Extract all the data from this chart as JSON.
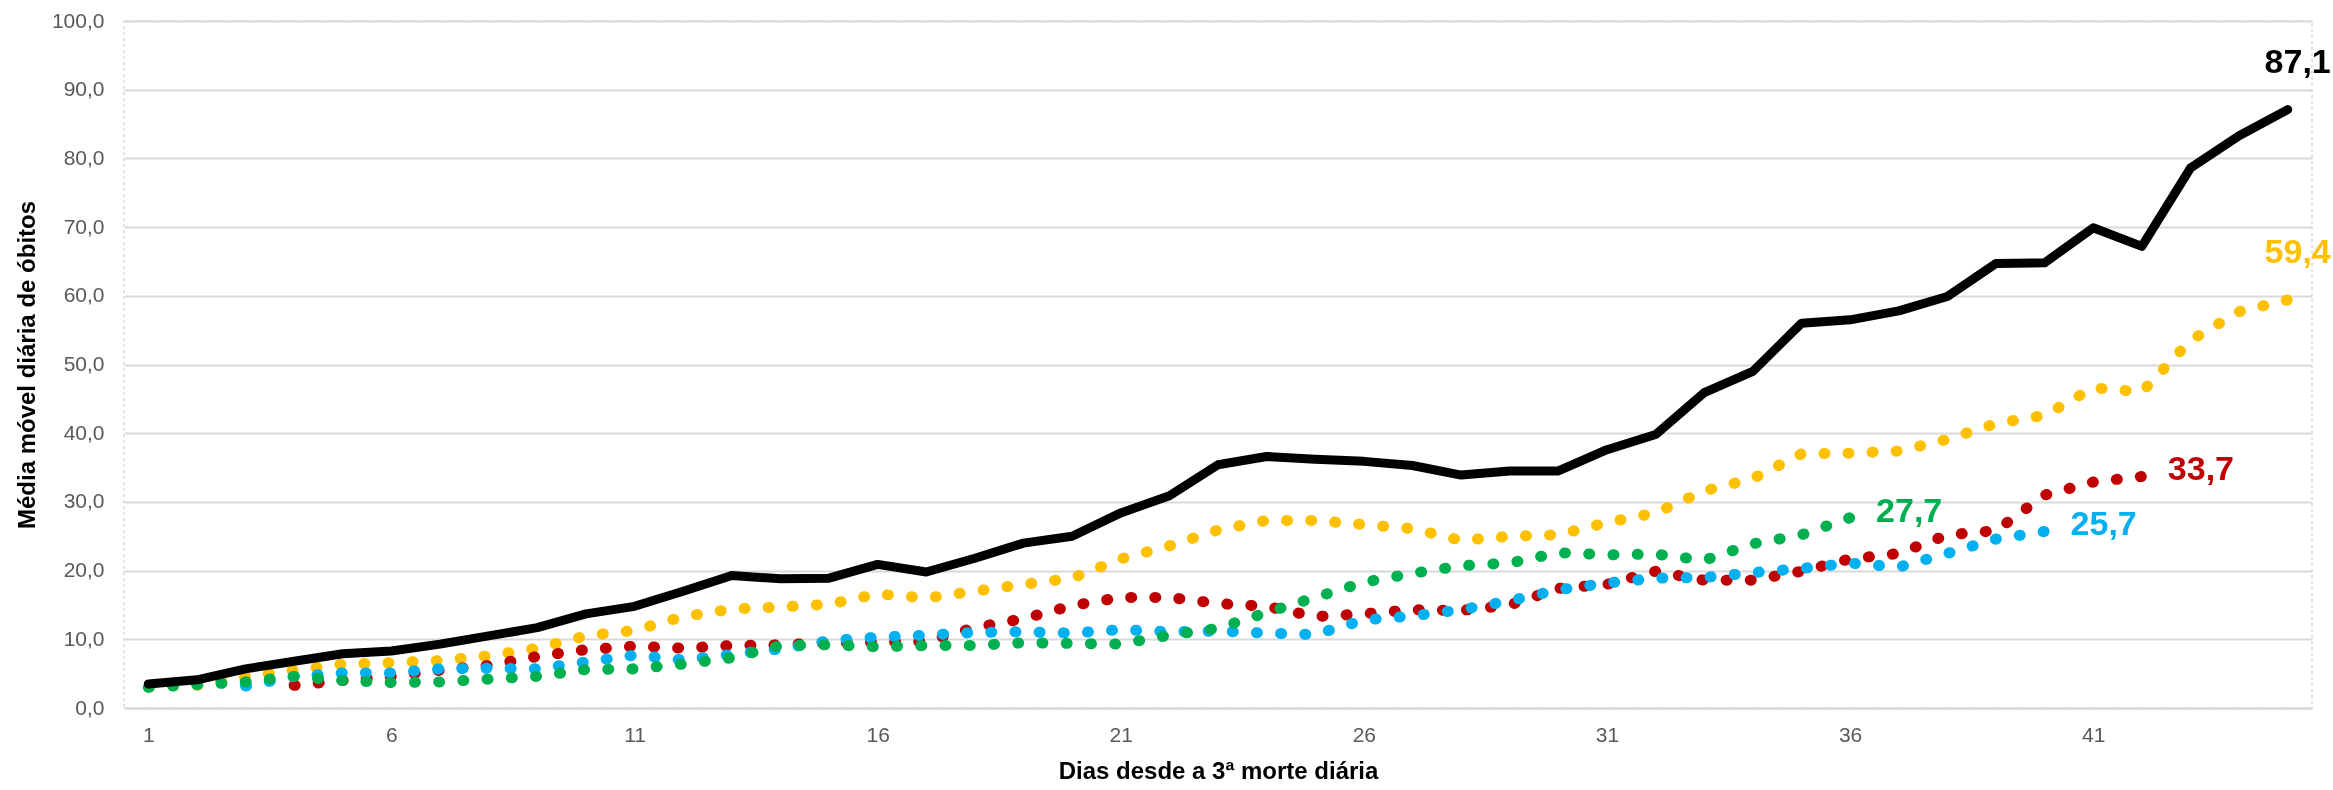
{
  "chart_data": {
    "type": "line",
    "xlabel": "Dias desde a 3ª morte diária",
    "ylabel": "Média móvel diária de óbitos",
    "x": [
      1,
      2,
      3,
      4,
      5,
      6,
      7,
      8,
      9,
      10,
      11,
      12,
      13,
      14,
      15,
      16,
      17,
      18,
      19,
      20,
      21,
      22,
      23,
      24,
      25,
      26,
      27,
      28,
      29,
      30,
      31,
      32,
      33,
      34,
      35,
      36,
      37,
      38,
      39,
      40,
      41,
      42,
      43,
      44,
      45
    ],
    "xlim": [
      0.5,
      45.5
    ],
    "xticks": [
      1,
      6,
      11,
      16,
      21,
      26,
      31,
      36,
      41
    ],
    "ylim": [
      0,
      100
    ],
    "yticks": [
      {
        "value": 0,
        "label": "0,0"
      },
      {
        "value": 10,
        "label": "10,0"
      },
      {
        "value": 20,
        "label": "20,0"
      },
      {
        "value": 30,
        "label": "30,0"
      },
      {
        "value": 40,
        "label": "40,0"
      },
      {
        "value": 50,
        "label": "50,0"
      },
      {
        "value": 60,
        "label": "60,0"
      },
      {
        "value": 70,
        "label": "70,0"
      },
      {
        "value": 80,
        "label": "80,0"
      },
      {
        "value": 90,
        "label": "90,0"
      },
      {
        "value": 100,
        "label": "100,0"
      }
    ],
    "grid": "y",
    "series": [
      {
        "color": "#ffc000",
        "line_style": "dotted",
        "values": [
          null,
          3.3,
          4.6,
          5.5,
          6.4,
          6.6,
          6.9,
          7.6,
          8.7,
          10.5,
          11.3,
          13.3,
          14.4,
          14.7,
          15.1,
          16.6,
          16.0,
          17.0,
          18.0,
          18.9,
          21.7,
          23.6,
          25.9,
          27.3,
          27.3,
          26.7,
          26.1,
          24.4,
          25.0,
          25.2,
          27.0,
          28.4,
          31.6,
          33.4,
          37.0,
          37.1,
          37.4,
          39.1,
          41.4,
          42.6,
          46.6,
          46.0,
          53.5,
          57.7,
          59.4
        ],
        "value_labels": [
          null,
          null,
          null,
          null,
          null,
          null,
          null,
          null,
          null,
          null,
          null,
          null,
          null,
          null,
          null,
          null,
          null,
          null,
          null,
          null,
          null,
          null,
          null,
          null,
          null,
          null,
          null,
          null,
          null,
          null,
          null,
          null,
          null,
          null,
          null,
          null,
          null,
          null,
          null,
          null,
          null,
          null,
          null,
          null,
          "59,4"
        ]
      },
      {
        "color": "#c00000",
        "line_style": "dotted",
        "values": [
          null,
          null,
          null,
          3.3,
          4.0,
          4.6,
          5.5,
          6.2,
          7.5,
          8.5,
          9.0,
          8.7,
          9.1,
          9.2,
          9.5,
          9.6,
          9.7,
          11.7,
          13.0,
          14.9,
          16.1,
          16.1,
          15.2,
          14.8,
          13.3,
          13.7,
          14.3,
          14.2,
          15.0,
          17.4,
          18.0,
          19.9,
          18.6,
          18.6,
          19.9,
          21.7,
          22.5,
          25.2,
          25.8,
          31.0,
          32.9,
          33.7,
          null,
          null,
          null
        ],
        "value_labels": [
          null,
          null,
          null,
          null,
          null,
          null,
          null,
          null,
          null,
          null,
          null,
          null,
          null,
          null,
          null,
          null,
          null,
          null,
          null,
          null,
          null,
          null,
          null,
          null,
          null,
          null,
          null,
          null,
          null,
          null,
          null,
          null,
          null,
          null,
          null,
          null,
          null,
          null,
          null,
          null,
          null,
          "33,7",
          null,
          null,
          null
        ]
      },
      {
        "color": "#00b0f0",
        "line_style": "dotted",
        "values": [
          null,
          null,
          3.2,
          4.6,
          5.1,
          5.1,
          5.7,
          5.8,
          5.7,
          6.7,
          7.7,
          7.0,
          7.8,
          8.6,
          9.8,
          10.3,
          10.6,
          11.0,
          11.1,
          10.9,
          11.4,
          11.1,
          11.2,
          10.9,
          10.7,
          12.8,
          13.4,
          14.3,
          15.6,
          17.2,
          18.2,
          18.9,
          19.0,
          19.7,
          20.3,
          21.1,
          20.5,
          22.5,
          24.6,
          25.7,
          null,
          null,
          null,
          null,
          null
        ],
        "value_labels": [
          null,
          null,
          null,
          null,
          null,
          null,
          null,
          null,
          null,
          null,
          null,
          null,
          null,
          null,
          null,
          null,
          null,
          null,
          null,
          null,
          null,
          null,
          null,
          null,
          null,
          null,
          null,
          null,
          null,
          null,
          null,
          null,
          null,
          null,
          null,
          null,
          null,
          null,
          null,
          "25,7",
          null,
          null,
          null,
          null,
          null
        ]
      },
      {
        "color": "#00b050",
        "line_style": "dotted",
        "values": [
          3.0,
          3.4,
          3.8,
          4.6,
          4.0,
          3.7,
          3.8,
          4.2,
          4.6,
          5.6,
          5.7,
          6.4,
          7.3,
          9.1,
          9.2,
          8.9,
          9.1,
          9.1,
          9.5,
          9.4,
          9.3,
          10.6,
          11.6,
          13.9,
          16.1,
          18.3,
          19.6,
          20.7,
          21.1,
          22.6,
          22.3,
          22.4,
          21.5,
          23.9,
          25.2,
          27.7,
          null,
          null,
          null,
          null,
          null,
          null,
          null,
          null,
          null
        ],
        "value_labels": [
          null,
          null,
          null,
          null,
          null,
          null,
          null,
          null,
          null,
          null,
          null,
          null,
          null,
          null,
          null,
          null,
          null,
          null,
          null,
          null,
          null,
          null,
          null,
          null,
          null,
          null,
          null,
          null,
          null,
          null,
          null,
          null,
          null,
          null,
          null,
          "27,7",
          null,
          null,
          null,
          null,
          null,
          null,
          null,
          null,
          null
        ]
      },
      {
        "color": "#000000",
        "line_style": "solid",
        "values": [
          3.5,
          4.1,
          5.7,
          6.8,
          7.9,
          8.3,
          9.3,
          10.5,
          11.7,
          13.7,
          14.8,
          17.0,
          19.3,
          18.8,
          18.9,
          20.9,
          19.8,
          21.8,
          24.0,
          25.0,
          28.4,
          30.9,
          35.4,
          36.6,
          36.2,
          35.9,
          35.3,
          33.9,
          34.5,
          34.5,
          37.6,
          39.8,
          45.9,
          49.0,
          56.0,
          56.5,
          57.8,
          59.9,
          64.7,
          64.8,
          69.9,
          67.2,
          78.6,
          83.3,
          87.1
        ],
        "value_labels": [
          null,
          null,
          null,
          null,
          null,
          null,
          null,
          null,
          null,
          null,
          null,
          null,
          null,
          null,
          null,
          null,
          null,
          null,
          null,
          null,
          null,
          null,
          null,
          null,
          null,
          null,
          null,
          null,
          null,
          null,
          null,
          null,
          null,
          null,
          null,
          null,
          null,
          null,
          null,
          null,
          null,
          null,
          null,
          null,
          "87,1"
        ]
      }
    ]
  }
}
